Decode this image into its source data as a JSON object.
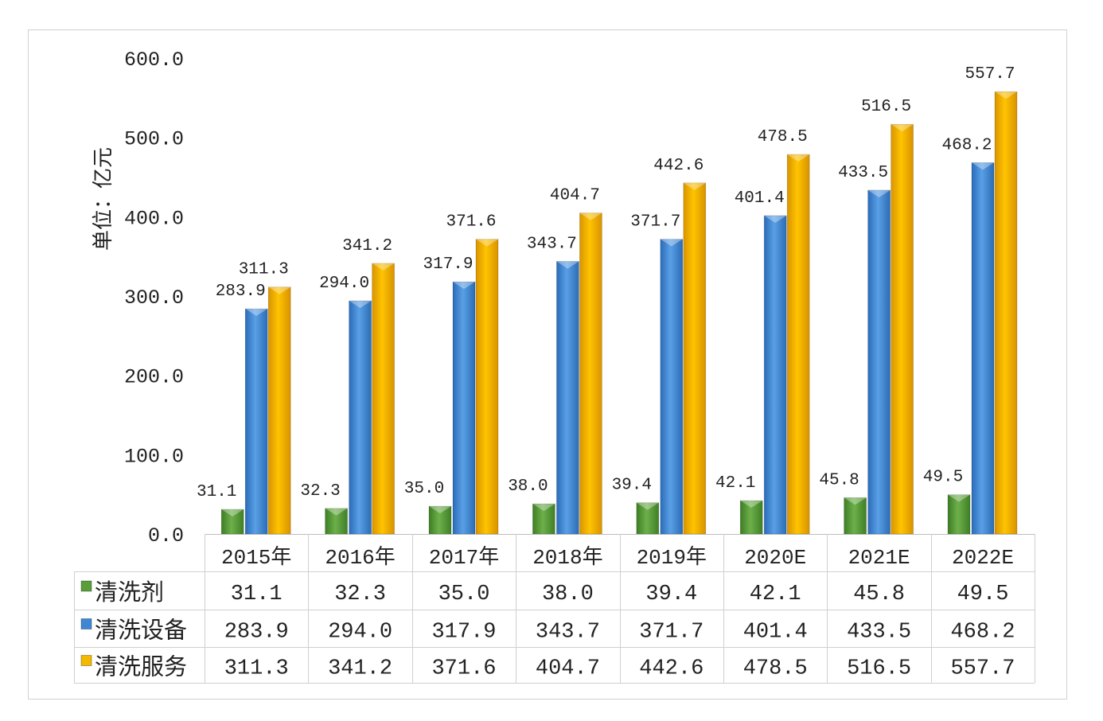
{
  "chart_data": {
    "type": "bar",
    "title": "",
    "xlabel": "",
    "ylabel": "单位：亿元",
    "ylim": [
      0,
      600
    ],
    "yticks": [
      "0.0",
      "100.0",
      "200.0",
      "300.0",
      "400.0",
      "500.0",
      "600.0"
    ],
    "grid": false,
    "legend": "data-table",
    "categories": [
      "2015年",
      "2016年",
      "2017年",
      "2018年",
      "2019年",
      "2020E",
      "2021E",
      "2022E"
    ],
    "series": [
      {
        "name": "清洗剂",
        "color": "#5a9e3a",
        "values": [
          31.1,
          32.3,
          35.0,
          38.0,
          39.4,
          42.1,
          45.8,
          49.5
        ]
      },
      {
        "name": "清洗设备",
        "color": "#3f87d4",
        "values": [
          283.9,
          294.0,
          317.9,
          343.7,
          371.7,
          401.4,
          433.5,
          468.2
        ]
      },
      {
        "name": "清洗服务",
        "color": "#f5b800",
        "values": [
          311.3,
          341.2,
          371.6,
          404.7,
          442.6,
          478.5,
          516.5,
          557.7
        ]
      }
    ]
  }
}
